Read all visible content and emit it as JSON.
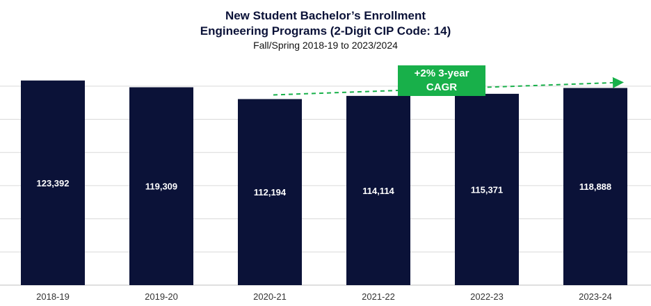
{
  "chart_data": {
    "type": "bar",
    "title": "New Student Bachelor’s Enrollment",
    "subtitle": "Engineering Programs (2-Digit CIP Code: 14)",
    "subtitle2": "Fall/Spring 2018-19 to 2023/2024",
    "categories": [
      "2018-19",
      "2019-20",
      "2020-21",
      "2021-22",
      "2022-23",
      "2023-24"
    ],
    "values": [
      123392,
      119309,
      112194,
      114114,
      115371,
      118888
    ],
    "value_labels": [
      "123,392",
      "119,309",
      "112,194",
      "114,114",
      "115,371",
      "118,888"
    ],
    "ylim": [
      0,
      130000
    ],
    "grid": true,
    "bar_color": "#0b1238",
    "annotation": {
      "line1": "+2% 3-year",
      "line2": "CAGR",
      "color": "#18b04a",
      "from_category": "2020-21",
      "to_category": "2023-24"
    }
  }
}
